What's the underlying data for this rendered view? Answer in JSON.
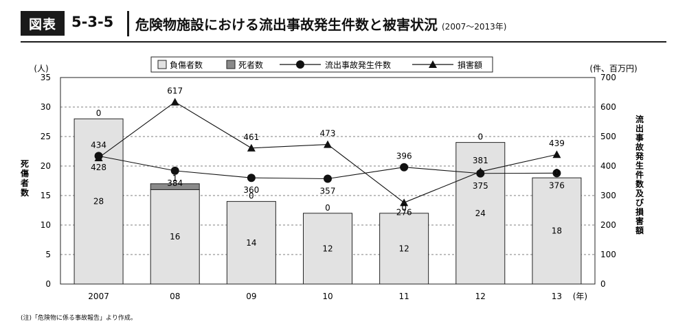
{
  "header": {
    "badge": "図表",
    "number": "5-3-5",
    "title": "危険物施設における流出事故発生件数と被害状況",
    "period": "(2007～2013年)"
  },
  "chart_data": {
    "type": "bar",
    "categories": [
      "2007",
      "08",
      "09",
      "10",
      "11",
      "12",
      "13"
    ],
    "x_unit": "(年)",
    "left_axis": {
      "label": "死傷者数",
      "unit": "(人)",
      "ylim": [
        0,
        35
      ],
      "ticks": [
        0,
        5,
        10,
        15,
        20,
        25,
        30,
        35
      ]
    },
    "right_axis": {
      "label": "流出事故発生件数及び損害額",
      "unit": "(件、百万円)",
      "ylim": [
        0,
        700
      ],
      "ticks": [
        0,
        100,
        200,
        300,
        400,
        500,
        600,
        700
      ]
    },
    "grid": true,
    "legend_placement": "top-center",
    "series": [
      {
        "name": "負傷者数",
        "type": "bar-stacked",
        "axis": "left",
        "color": "#e2e2e2",
        "values": [
          28,
          16,
          14,
          12,
          12,
          24,
          18
        ]
      },
      {
        "name": "死者数",
        "type": "bar-stacked",
        "axis": "left",
        "color": "#8a8a8a",
        "values": [
          0,
          1,
          0,
          0,
          0,
          0,
          0
        ]
      },
      {
        "name": "流出事故発生件数",
        "type": "line",
        "marker": "circle",
        "axis": "right",
        "values": [
          434,
          384,
          360,
          357,
          396,
          375,
          376
        ]
      },
      {
        "name": "損害額",
        "type": "line",
        "marker": "triangle",
        "axis": "right",
        "values": [
          428,
          617,
          461,
          473,
          276,
          381,
          439
        ]
      }
    ]
  },
  "note": "(注)「危険物に係る事故報告」より作成。"
}
